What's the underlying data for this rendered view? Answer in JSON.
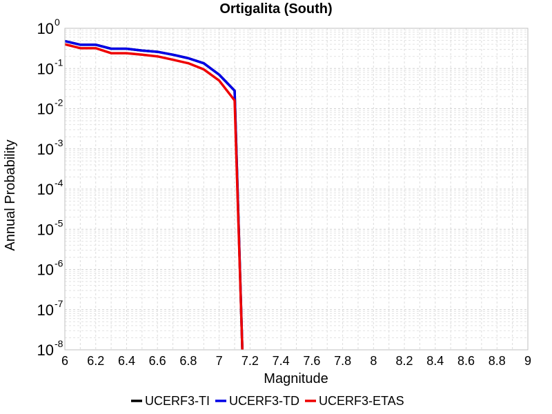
{
  "chart_data": {
    "type": "line",
    "title": "Ortigalita (South)",
    "xlabel": "Magnitude",
    "ylabel": "Annual Probability",
    "xlim": [
      6,
      9
    ],
    "ylim": [
      1e-08,
      1
    ],
    "y_scale": "log",
    "grid": true,
    "legend_placement": "bottom-center",
    "x_ticks": [
      "6",
      "6.2",
      "6.4",
      "6.6",
      "6.8",
      "7",
      "7.2",
      "7.4",
      "7.6",
      "7.8",
      "8",
      "8.2",
      "8.4",
      "8.6",
      "8.8",
      "9"
    ],
    "y_ticks": [
      {
        "base": "10",
        "exp": "0",
        "value": 1
      },
      {
        "base": "10",
        "exp": "-1",
        "value": 0.1
      },
      {
        "base": "10",
        "exp": "-2",
        "value": 0.01
      },
      {
        "base": "10",
        "exp": "-3",
        "value": 0.001
      },
      {
        "base": "10",
        "exp": "-4",
        "value": 0.0001
      },
      {
        "base": "10",
        "exp": "-5",
        "value": 1e-05
      },
      {
        "base": "10",
        "exp": "-6",
        "value": 1e-06
      },
      {
        "base": "10",
        "exp": "-7",
        "value": 1e-07
      },
      {
        "base": "10",
        "exp": "-8",
        "value": 1e-08
      }
    ],
    "series": [
      {
        "name": "UCERF3-TI",
        "color": "#000000",
        "x": [
          6.0,
          6.1,
          6.2,
          6.3,
          6.4,
          6.5,
          6.6,
          6.7,
          6.8,
          6.9,
          7.0,
          7.1,
          7.15
        ],
        "y": [
          0.48,
          0.39,
          0.39,
          0.31,
          0.31,
          0.28,
          0.26,
          0.22,
          0.18,
          0.135,
          0.07,
          0.028,
          1e-08
        ]
      },
      {
        "name": "UCERF3-TD",
        "color": "#0000e6",
        "x": [
          6.0,
          6.1,
          6.2,
          6.3,
          6.4,
          6.5,
          6.6,
          6.7,
          6.8,
          6.9,
          7.0,
          7.1,
          7.15
        ],
        "y": [
          0.48,
          0.39,
          0.39,
          0.31,
          0.31,
          0.28,
          0.26,
          0.22,
          0.18,
          0.135,
          0.07,
          0.028,
          1e-08
        ]
      },
      {
        "name": "UCERF3-ETAS",
        "color": "#ee0000",
        "x": [
          6.0,
          6.1,
          6.2,
          6.3,
          6.4,
          6.5,
          6.6,
          6.7,
          6.8,
          6.9,
          7.0,
          7.1,
          7.15
        ],
        "y": [
          0.4,
          0.32,
          0.32,
          0.24,
          0.24,
          0.22,
          0.2,
          0.165,
          0.135,
          0.095,
          0.05,
          0.016,
          1e-08
        ]
      }
    ]
  }
}
